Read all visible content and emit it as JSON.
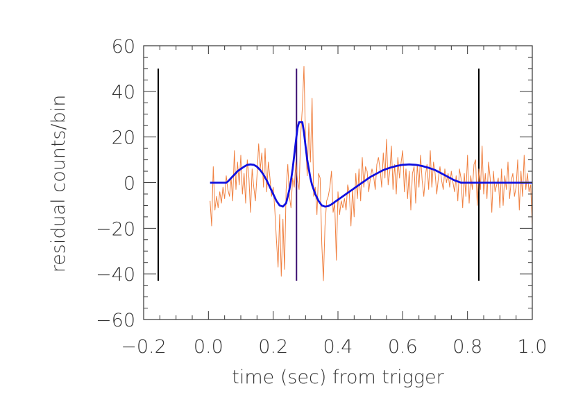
{
  "chart_data": {
    "type": "line",
    "title": "",
    "xlabel": "time (sec) from trigger",
    "ylabel": "residual counts/bin",
    "xlim": [
      -0.2,
      1.0
    ],
    "ylim": [
      -60,
      60
    ],
    "x_ticks": [
      -0.2,
      0.0,
      0.2,
      0.4,
      0.6,
      0.8,
      1.0
    ],
    "x_tick_labels": [
      "−0.2",
      "0.0",
      "0.2",
      "0.4",
      "0.6",
      "0.8",
      "1.0"
    ],
    "y_ticks": [
      60,
      40,
      20,
      0,
      -20,
      -40,
      -60
    ],
    "y_tick_labels": [
      "60",
      "40",
      "20",
      "0",
      "−20",
      "−40",
      "−60"
    ],
    "grid": false,
    "legend": "none",
    "vertical_markers": [
      {
        "x": -0.155,
        "y_range": [
          -43,
          50
        ],
        "color": "#000000"
      },
      {
        "x": 0.272,
        "y_range": [
          -43,
          50
        ],
        "color": "#3b0f70"
      },
      {
        "x": 0.835,
        "y_range": [
          -43,
          50
        ],
        "color": "#000000"
      }
    ],
    "series": [
      {
        "color": "#f08040",
        "x": [
          0.005,
          0.01,
          0.015,
          0.02,
          0.025,
          0.03,
          0.035,
          0.04,
          0.045,
          0.05,
          0.055,
          0.06,
          0.065,
          0.07,
          0.075,
          0.08,
          0.085,
          0.09,
          0.095,
          0.1,
          0.105,
          0.11,
          0.115,
          0.12,
          0.125,
          0.13,
          0.135,
          0.14,
          0.145,
          0.15,
          0.155,
          0.16,
          0.165,
          0.17,
          0.175,
          0.18,
          0.185,
          0.19,
          0.195,
          0.2,
          0.205,
          0.21,
          0.215,
          0.22,
          0.225,
          0.23,
          0.235,
          0.24,
          0.245,
          0.25,
          0.255,
          0.26,
          0.265,
          0.27,
          0.275,
          0.28,
          0.285,
          0.29,
          0.295,
          0.3,
          0.305,
          0.31,
          0.315,
          0.32,
          0.325,
          0.33,
          0.335,
          0.34,
          0.345,
          0.35,
          0.355,
          0.36,
          0.365,
          0.37,
          0.375,
          0.38,
          0.385,
          0.39,
          0.395,
          0.4,
          0.405,
          0.41,
          0.415,
          0.42,
          0.425,
          0.43,
          0.435,
          0.44,
          0.445,
          0.45,
          0.455,
          0.46,
          0.465,
          0.47,
          0.475,
          0.48,
          0.485,
          0.49,
          0.495,
          0.5,
          0.505,
          0.51,
          0.515,
          0.52,
          0.525,
          0.53,
          0.535,
          0.54,
          0.545,
          0.55,
          0.555,
          0.56,
          0.565,
          0.57,
          0.575,
          0.58,
          0.585,
          0.59,
          0.595,
          0.6,
          0.605,
          0.61,
          0.615,
          0.62,
          0.625,
          0.63,
          0.635,
          0.64,
          0.645,
          0.65,
          0.655,
          0.66,
          0.665,
          0.67,
          0.675,
          0.68,
          0.685,
          0.69,
          0.695,
          0.7,
          0.705,
          0.71,
          0.715,
          0.72,
          0.725,
          0.73,
          0.735,
          0.74,
          0.745,
          0.75,
          0.755,
          0.76,
          0.765,
          0.77,
          0.775,
          0.78,
          0.785,
          0.79,
          0.795,
          0.8,
          0.805,
          0.81,
          0.815,
          0.82,
          0.825,
          0.83,
          0.835,
          0.84,
          0.845,
          0.85,
          0.855,
          0.86,
          0.865,
          0.87,
          0.875,
          0.88,
          0.885,
          0.89,
          0.895,
          0.9,
          0.905,
          0.91,
          0.915,
          0.92,
          0.925,
          0.93,
          0.935,
          0.94,
          0.945,
          0.95,
          0.955,
          0.96,
          0.965,
          0.97,
          0.975,
          0.98,
          0.985,
          0.99,
          0.995,
          1.0
        ],
        "y": [
          -8,
          -19,
          7,
          -12,
          -6,
          -11,
          -4,
          -9,
          -2,
          -7,
          3,
          -3,
          -6,
          2,
          -8,
          14,
          -3,
          9,
          -1,
          12,
          -5,
          4,
          -9,
          10,
          2,
          -13,
          6,
          -2,
          -8,
          3,
          17,
          6,
          13,
          -2,
          15,
          -4,
          9,
          2,
          -6,
          -2,
          -12,
          -25,
          -37,
          -14,
          -41,
          -16,
          -38,
          -3,
          8,
          -6,
          -11,
          2,
          -2,
          9,
          1,
          -3,
          21,
          33,
          51,
          18,
          3,
          26,
          9,
          37,
          -6,
          -2,
          -14,
          4,
          2,
          -27,
          -43,
          -19,
          -8,
          -6,
          -2,
          5,
          -13,
          -9,
          -34,
          -4,
          -14,
          -8,
          -11,
          -7,
          -12,
          -1,
          -4,
          -19,
          -3,
          -15,
          4,
          -7,
          6,
          -8,
          11,
          -2,
          7,
          5,
          -4,
          2,
          6,
          3,
          -3,
          8,
          11,
          6,
          -2,
          13,
          2,
          19,
          -1,
          5,
          16,
          -3,
          8,
          -5,
          11,
          2,
          9,
          14,
          -4,
          6,
          -7,
          5,
          -12,
          4,
          7,
          -9,
          8,
          -2,
          12,
          1,
          -6,
          3,
          8,
          -3,
          14,
          -2,
          9,
          4,
          -5,
          2,
          7,
          1,
          -3,
          6,
          0,
          4,
          -2,
          5,
          0,
          -4,
          3,
          -8,
          6,
          2,
          -11,
          4,
          -6,
          12,
          -9,
          3,
          -3,
          8,
          10,
          -10,
          6,
          -3,
          16,
          -5,
          4,
          -7,
          9,
          2,
          -13,
          5,
          -4,
          -1,
          2,
          -11,
          6,
          -10,
          3,
          -3,
          9,
          -7,
          1,
          4,
          -6,
          -2,
          10,
          -12,
          5,
          -6,
          12,
          -3,
          4,
          -4,
          -1,
          -19
        ]
      },
      {
        "color": "#1010e0",
        "x": [
          0.005,
          0.01,
          0.02,
          0.03,
          0.04,
          0.05,
          0.055,
          0.06,
          0.07,
          0.08,
          0.09,
          0.1,
          0.11,
          0.12,
          0.13,
          0.14,
          0.15,
          0.16,
          0.17,
          0.18,
          0.19,
          0.2,
          0.21,
          0.22,
          0.23,
          0.24,
          0.245,
          0.25,
          0.255,
          0.26,
          0.265,
          0.27,
          0.275,
          0.28,
          0.285,
          0.29,
          0.295,
          0.3,
          0.305,
          0.31,
          0.315,
          0.32,
          0.33,
          0.34,
          0.35,
          0.36,
          0.37,
          0.38,
          0.39,
          0.4,
          0.41,
          0.42,
          0.43,
          0.44,
          0.46,
          0.48,
          0.5,
          0.52,
          0.54,
          0.56,
          0.58,
          0.6,
          0.62,
          0.64,
          0.66,
          0.68,
          0.7,
          0.72,
          0.74,
          0.76,
          0.78,
          0.8,
          0.85,
          0.9,
          0.95,
          1.0
        ],
        "y": [
          0,
          0,
          0,
          0,
          0,
          0,
          0,
          0.5,
          2,
          3.5,
          5,
          6,
          7,
          7.8,
          8,
          7.8,
          7,
          5.5,
          3.5,
          1,
          -2,
          -5,
          -8,
          -10,
          -10.5,
          -9,
          -6,
          -3,
          1,
          6,
          12,
          18,
          24,
          26.5,
          26.5,
          26.5,
          22,
          16,
          10,
          6,
          2,
          -1,
          -5,
          -8,
          -10,
          -10.5,
          -10.3,
          -9.5,
          -8.5,
          -7.5,
          -6.5,
          -5.5,
          -4.5,
          -3.5,
          -1.5,
          0.5,
          2.5,
          4,
          5.5,
          6.5,
          7.3,
          7.8,
          8,
          7.8,
          7.3,
          6.5,
          5.5,
          4,
          2.5,
          1,
          0,
          0,
          0,
          0,
          0,
          0
        ]
      }
    ]
  }
}
